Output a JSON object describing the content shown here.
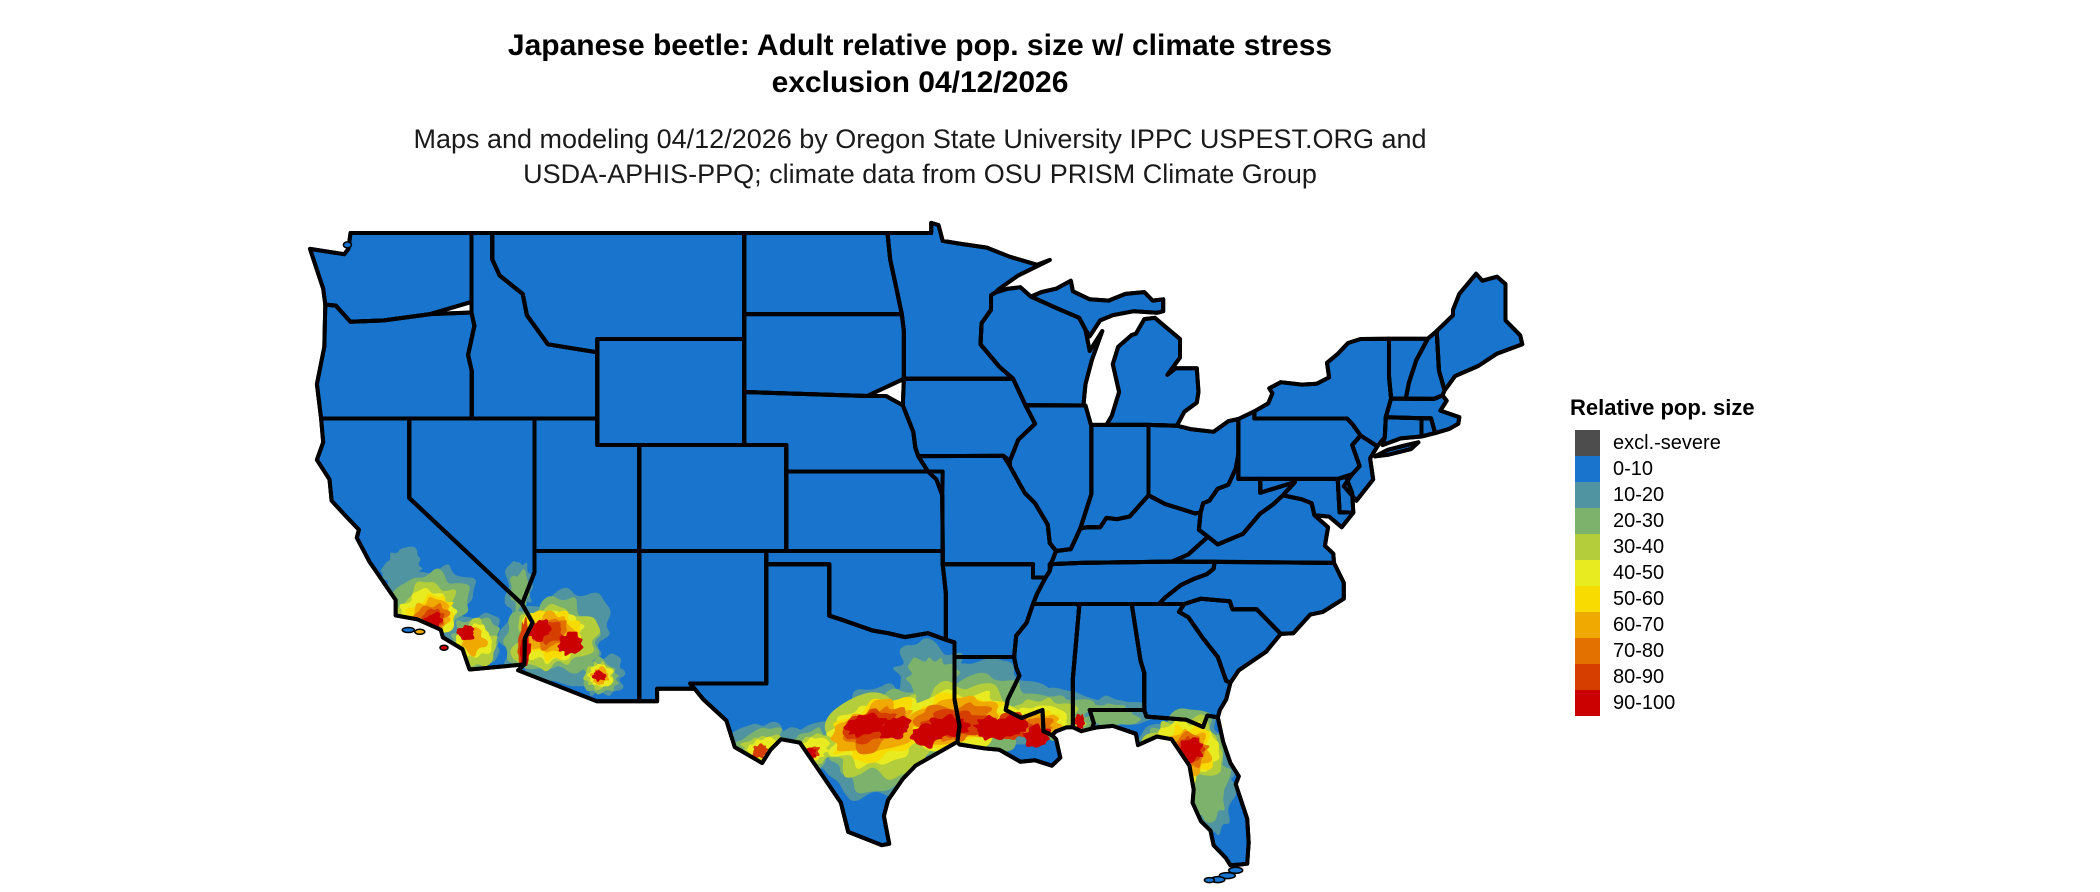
{
  "title": {
    "line1": "Japanese beetle: Adult relative pop. size w/ climate stress",
    "line2": "exclusion 04/12/2026"
  },
  "subtitle": {
    "line1": "Maps and modeling 04/12/2026 by Oregon State University IPPC USPEST.ORG and",
    "line2": "USDA-APHIS-PPQ; climate data from OSU PRISM Climate Group"
  },
  "legend": {
    "title": "Relative pop. size",
    "items": [
      {
        "label": "excl.-severe",
        "color": "#4D4D4D"
      },
      {
        "label": "0-10",
        "color": "#1874CD"
      },
      {
        "label": "10-20",
        "color": "#4F94A0"
      },
      {
        "label": "20-30",
        "color": "#7CB26C"
      },
      {
        "label": "30-40",
        "color": "#B4CE3B"
      },
      {
        "label": "40-50",
        "color": "#E7EB20"
      },
      {
        "label": "50-60",
        "color": "#F8DB00"
      },
      {
        "label": "60-70",
        "color": "#EFA900"
      },
      {
        "label": "70-80",
        "color": "#E27100"
      },
      {
        "label": "80-90",
        "color": "#D63E00"
      },
      {
        "label": "90-100",
        "color": "#CB0101"
      }
    ]
  },
  "map": {
    "land_class": "0-10",
    "land_color": "#1874CD",
    "border_color": "#000000",
    "background": "#FFFFFF"
  }
}
